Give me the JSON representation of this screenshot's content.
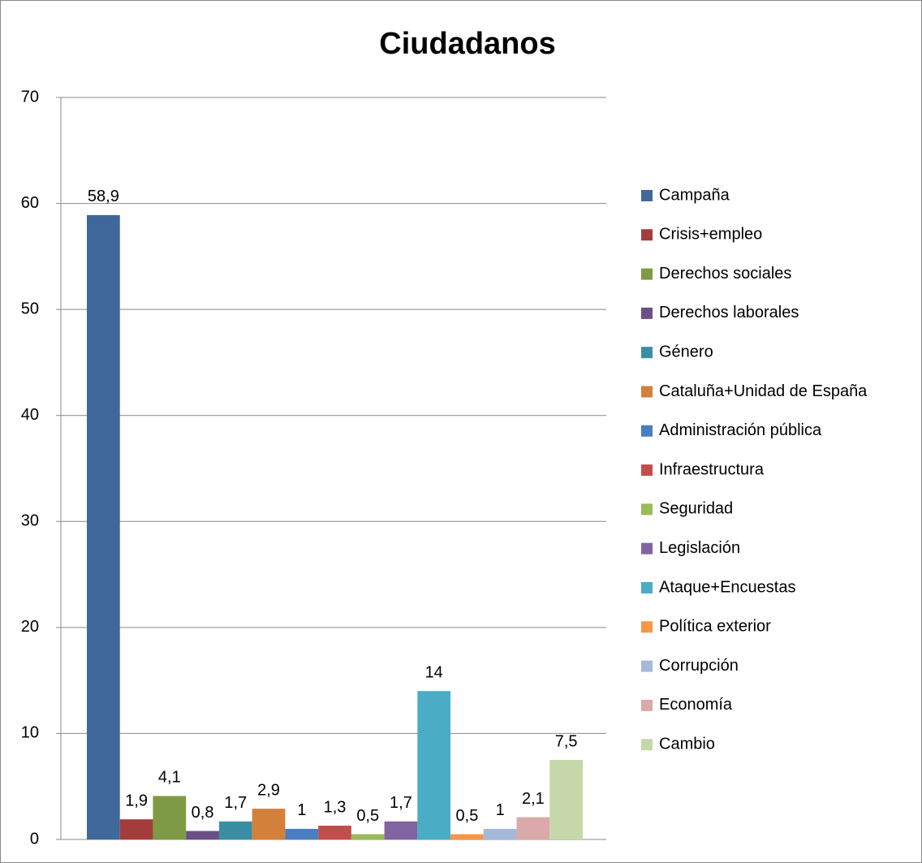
{
  "chart_data": {
    "type": "bar",
    "title": "Ciudadanos",
    "categories": [
      null
    ],
    "ylim": [
      0,
      70
    ],
    "yticks": [
      0,
      10,
      20,
      30,
      40,
      50,
      60,
      70
    ],
    "grid": true,
    "legend": "right",
    "series": [
      {
        "name": "Campaña",
        "color": "#41689a",
        "values": [
          58.9
        ],
        "value_labels": [
          "58,9"
        ]
      },
      {
        "name": "Crisis+empleo",
        "color": "#a33d3b",
        "values": [
          1.9
        ],
        "value_labels": [
          "1,9"
        ]
      },
      {
        "name": "Derechos sociales",
        "color": "#7f9a44",
        "values": [
          4.1
        ],
        "value_labels": [
          "4,1"
        ]
      },
      {
        "name": "Derechos laborales",
        "color": "#6a5084",
        "values": [
          0.8
        ],
        "value_labels": [
          "0,8"
        ]
      },
      {
        "name": "Género",
        "color": "#3a8ea3",
        "values": [
          1.7
        ],
        "value_labels": [
          "1,7"
        ]
      },
      {
        "name": "Cataluña+Unidad de España",
        "color": "#d2803a",
        "values": [
          2.9
        ],
        "value_labels": [
          "2,9"
        ]
      },
      {
        "name": "Administración pública",
        "color": "#4a7ec2",
        "values": [
          1
        ]
      },
      {
        "name": "Infraestructura",
        "color": "#c24e4c",
        "values": [
          1.3
        ],
        "value_labels": [
          "1,3"
        ]
      },
      {
        "name": "Seguridad",
        "color": "#9bbb59",
        "values": [
          0.5
        ],
        "value_labels": [
          "0,5"
        ]
      },
      {
        "name": "Legislación",
        "color": "#8064a2",
        "values": [
          1.7
        ],
        "value_labels": [
          "1,7"
        ]
      },
      {
        "name": "Ataque+Encuestas",
        "color": "#4bacc6",
        "values": [
          14
        ]
      },
      {
        "name": "Política exterior",
        "color": "#f79646",
        "values": [
          0.5
        ],
        "value_labels": [
          "0,5"
        ]
      },
      {
        "name": "Corrupción",
        "color": "#a5b9db",
        "values": [
          1
        ]
      },
      {
        "name": "Economía",
        "color": "#dba9a9",
        "values": [
          2.1
        ],
        "value_labels": [
          "2,1"
        ]
      },
      {
        "name": "Cambio",
        "color": "#c6d8aa",
        "values": [
          7.5
        ],
        "value_labels": [
          "7,5"
        ]
      }
    ]
  }
}
